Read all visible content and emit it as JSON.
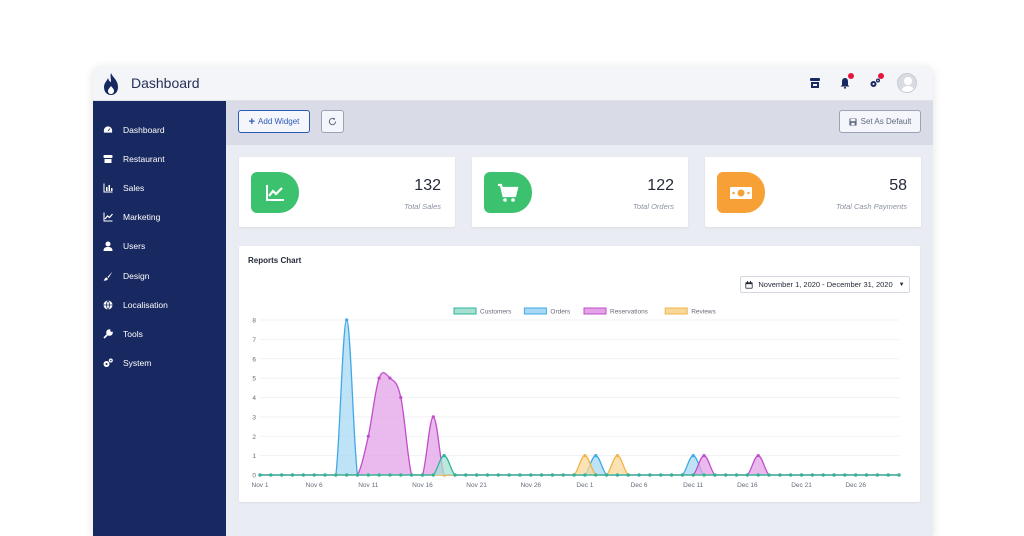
{
  "app": {
    "title": "Dashboard"
  },
  "sidebar": {
    "items": [
      {
        "label": "Dashboard",
        "icon": "dashboard-icon"
      },
      {
        "label": "Restaurant",
        "icon": "restaurant-icon"
      },
      {
        "label": "Sales",
        "icon": "sales-chart-icon"
      },
      {
        "label": "Marketing",
        "icon": "marketing-chart-icon"
      },
      {
        "label": "Users",
        "icon": "user-icon"
      },
      {
        "label": "Design",
        "icon": "paintbrush-icon"
      },
      {
        "label": "Localisation",
        "icon": "globe-icon"
      },
      {
        "label": "Tools",
        "icon": "wrench-icon"
      },
      {
        "label": "System",
        "icon": "cogs-icon"
      }
    ]
  },
  "toolbar": {
    "add_widget_label": "Add Widget",
    "set_default_label": "Set As Default"
  },
  "cards": [
    {
      "value": "132",
      "label": "Total Sales",
      "color": "#3cc26f",
      "icon": "trend-chart-icon"
    },
    {
      "value": "122",
      "label": "Total Orders",
      "color": "#3cc26f",
      "icon": "cart-icon"
    },
    {
      "value": "58",
      "label": "Total Cash Payments",
      "color": "#f7a035",
      "icon": "cash-icon"
    }
  ],
  "reports": {
    "title": "Reports Chart",
    "date_range": "November 1, 2020 - December 31, 2020"
  },
  "chart_data": {
    "type": "area",
    "x": [
      "Nov 1",
      "Nov 2",
      "Nov 3",
      "Nov 4",
      "Nov 5",
      "Nov 6",
      "Nov 7",
      "Nov 8",
      "Nov 9",
      "Nov 10",
      "Nov 11",
      "Nov 12",
      "Nov 13",
      "Nov 14",
      "Nov 15",
      "Nov 16",
      "Nov 17",
      "Nov 18",
      "Nov 19",
      "Nov 20",
      "Nov 21",
      "Nov 22",
      "Nov 23",
      "Nov 24",
      "Nov 25",
      "Nov 26",
      "Nov 27",
      "Nov 28",
      "Nov 29",
      "Nov 30",
      "Dec 1",
      "Dec 2",
      "Dec 3",
      "Dec 4",
      "Dec 5",
      "Dec 6",
      "Dec 7",
      "Dec 8",
      "Dec 9",
      "Dec 10",
      "Dec 11",
      "Dec 12",
      "Dec 13",
      "Dec 14",
      "Dec 15",
      "Dec 16",
      "Dec 17",
      "Dec 18",
      "Dec 19",
      "Dec 20",
      "Dec 21",
      "Dec 22",
      "Dec 23",
      "Dec 24",
      "Dec 25",
      "Dec 26",
      "Dec 27",
      "Dec 28",
      "Dec 29",
      "Dec 30"
    ],
    "tick_labels": [
      "Nov 1",
      "Nov 6",
      "Nov 11",
      "Nov 16",
      "Nov 21",
      "Nov 26",
      "Dec 1",
      "Dec 6",
      "Dec 11",
      "Dec 16",
      "Dec 21",
      "Dec 26"
    ],
    "ylim": [
      0,
      8
    ],
    "yticks": [
      0,
      1,
      2,
      3,
      4,
      5,
      6,
      7,
      8
    ],
    "grid": true,
    "legend_position": "top",
    "series": [
      {
        "name": "Customers",
        "color": "#2bb59a",
        "fill": "#a7e0d3",
        "values": [
          0,
          0,
          0,
          0,
          0,
          0,
          0,
          0,
          0,
          0,
          0,
          0,
          0,
          0,
          0,
          0,
          0,
          1,
          0,
          0,
          0,
          0,
          0,
          0,
          0,
          0,
          0,
          0,
          0,
          0,
          0,
          0,
          0,
          0,
          0,
          0,
          0,
          0,
          0,
          0,
          0,
          0,
          0,
          0,
          0,
          0,
          0,
          0,
          0,
          0,
          0,
          0,
          0,
          0,
          0,
          0,
          0,
          0,
          0,
          0
        ]
      },
      {
        "name": "Orders",
        "color": "#3fa9e6",
        "fill": "#a8d8f3",
        "values": [
          0,
          0,
          0,
          0,
          0,
          0,
          0,
          0,
          8,
          0,
          0,
          0,
          0,
          0,
          0,
          0,
          0,
          0,
          0,
          0,
          0,
          0,
          0,
          0,
          0,
          0,
          0,
          0,
          0,
          0,
          0,
          1,
          0,
          0,
          0,
          0,
          0,
          0,
          0,
          0,
          1,
          0,
          0,
          0,
          0,
          0,
          0,
          0,
          0,
          0,
          0,
          0,
          0,
          0,
          0,
          0,
          0,
          0,
          0,
          0
        ]
      },
      {
        "name": "Reservations",
        "color": "#c04ec9",
        "fill": "#e3a3e8",
        "values": [
          0,
          0,
          0,
          0,
          0,
          0,
          0,
          0,
          0,
          0,
          2,
          5,
          5,
          4,
          0,
          0,
          3,
          0,
          0,
          0,
          0,
          0,
          0,
          0,
          0,
          0,
          0,
          0,
          0,
          0,
          0,
          0,
          0,
          0,
          0,
          0,
          0,
          0,
          0,
          0,
          0,
          1,
          0,
          0,
          0,
          0,
          1,
          0,
          0,
          0,
          0,
          0,
          0,
          0,
          0,
          0,
          0,
          0,
          0,
          0
        ]
      },
      {
        "name": "Reviews",
        "color": "#f0b447",
        "fill": "#f8d89a",
        "values": [
          0,
          0,
          0,
          0,
          0,
          0,
          0,
          0,
          0,
          0,
          0,
          0,
          0,
          0,
          0,
          0,
          0,
          0,
          0,
          0,
          0,
          0,
          0,
          0,
          0,
          0,
          0,
          0,
          0,
          0,
          1,
          0,
          0,
          1,
          0,
          0,
          0,
          0,
          0,
          0,
          0,
          0,
          0,
          0,
          0,
          0,
          0,
          0,
          0,
          0,
          0,
          0,
          0,
          0,
          0,
          0,
          0,
          0,
          0,
          0
        ]
      }
    ]
  }
}
